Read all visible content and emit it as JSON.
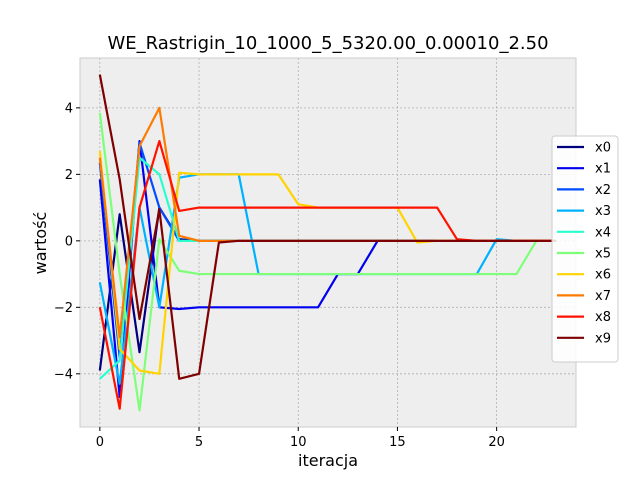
{
  "chart_data": {
    "type": "line",
    "title": "WE_Rastrigin_10_1000_5_5320.00_0.00010_2.50",
    "xlabel": "iteracja",
    "ylabel": "wartość",
    "xlim": [
      -1,
      24
    ],
    "ylim": [
      -5.6,
      5.5
    ],
    "xticks": [
      0,
      5,
      10,
      15,
      20
    ],
    "yticks": [
      -4,
      -2,
      0,
      2,
      4
    ],
    "grid": true,
    "legend_position": "right",
    "series": [
      {
        "name": "x0",
        "color": "#00007f",
        "values": [
          -3.9,
          0.8,
          -3.35,
          1.0,
          0.05,
          0.0,
          0.0,
          0.0,
          0.0,
          0.0,
          0.0,
          0.0,
          0.0,
          0.0,
          0.0,
          0.0,
          0.0,
          0.0,
          0.0,
          0.0,
          0.0,
          0.0,
          0.0,
          0.0
        ]
      },
      {
        "name": "x1",
        "color": "#0000f1",
        "values": [
          1.85,
          -4.7,
          3.0,
          -2.0,
          -2.05,
          -2.0,
          -2.0,
          -2.0,
          -2.0,
          -2.0,
          -2.0,
          -2.0,
          -1.0,
          -1.0,
          0.0,
          0.0,
          0.0,
          0.0,
          0.0,
          0.0,
          0.0,
          0.0,
          0.0,
          0.0
        ]
      },
      {
        "name": "x2",
        "color": "#004dff",
        "values": [
          2.35,
          -3.5,
          2.95,
          1.0,
          0.0,
          0.0,
          0.0,
          0.0,
          0.0,
          0.0,
          0.0,
          0.0,
          0.0,
          0.0,
          0.0,
          0.0,
          0.0,
          0.0,
          0.0,
          0.0,
          0.0,
          0.0,
          0.0,
          0.0
        ]
      },
      {
        "name": "x3",
        "color": "#00b1ff",
        "values": [
          -1.25,
          -4.3,
          1.0,
          -2.0,
          1.9,
          2.0,
          2.0,
          2.0,
          -1.0,
          -1.0,
          -1.0,
          -1.0,
          -1.0,
          -1.0,
          -1.0,
          -1.0,
          -1.0,
          -1.0,
          -1.0,
          -1.0,
          0.05,
          0.0,
          0.0,
          0.0
        ]
      },
      {
        "name": "x4",
        "color": "#29ffce",
        "values": [
          -4.15,
          -3.6,
          2.5,
          2.0,
          0.0,
          0.0,
          0.0,
          0.0,
          0.0,
          0.0,
          0.0,
          0.0,
          0.0,
          0.0,
          0.0,
          0.0,
          0.0,
          0.0,
          0.0,
          0.0,
          0.0,
          0.0,
          0.0,
          0.0
        ]
      },
      {
        "name": "x5",
        "color": "#7dff7a",
        "values": [
          3.85,
          -1.0,
          -5.1,
          0.05,
          -0.9,
          -1.0,
          -1.0,
          -1.0,
          -1.0,
          -1.0,
          -1.0,
          -1.0,
          -1.0,
          -1.0,
          -1.0,
          -1.0,
          -1.0,
          -1.0,
          -1.0,
          -1.0,
          -1.0,
          -1.0,
          0.0,
          0.0
        ]
      },
      {
        "name": "x6",
        "color": "#ffd300",
        "values": [
          2.7,
          -3.25,
          -3.9,
          -4.0,
          2.05,
          2.0,
          2.0,
          2.0,
          2.0,
          2.0,
          1.1,
          1.0,
          1.0,
          1.0,
          1.0,
          1.0,
          -0.05,
          0.0,
          0.0,
          0.0,
          0.0,
          0.0,
          0.0,
          0.0
        ]
      },
      {
        "name": "x7",
        "color": "#ff7a00",
        "values": [
          2.5,
          -2.9,
          2.85,
          4.0,
          0.15,
          0.0,
          0.0,
          0.0,
          0.0,
          0.0,
          0.0,
          0.0,
          0.0,
          0.0,
          0.0,
          0.0,
          0.0,
          0.0,
          0.0,
          0.0,
          0.0,
          0.0,
          0.0,
          0.0
        ]
      },
      {
        "name": "x8",
        "color": "#ff1300",
        "values": [
          -2.0,
          -5.05,
          1.0,
          3.0,
          0.9,
          1.0,
          1.0,
          1.0,
          1.0,
          1.0,
          1.0,
          1.0,
          1.0,
          1.0,
          1.0,
          1.0,
          1.0,
          1.0,
          0.05,
          0.0,
          0.0,
          0.0,
          0.0,
          0.0
        ]
      },
      {
        "name": "x9",
        "color": "#7f0000",
        "values": [
          5.0,
          1.85,
          -2.35,
          0.95,
          -4.15,
          -4.0,
          -0.05,
          0.0,
          0.0,
          0.0,
          0.0,
          0.0,
          0.0,
          0.0,
          0.0,
          0.0,
          0.0,
          0.0,
          0.0,
          0.0,
          0.0,
          0.0,
          0.0,
          0.0
        ]
      }
    ]
  }
}
